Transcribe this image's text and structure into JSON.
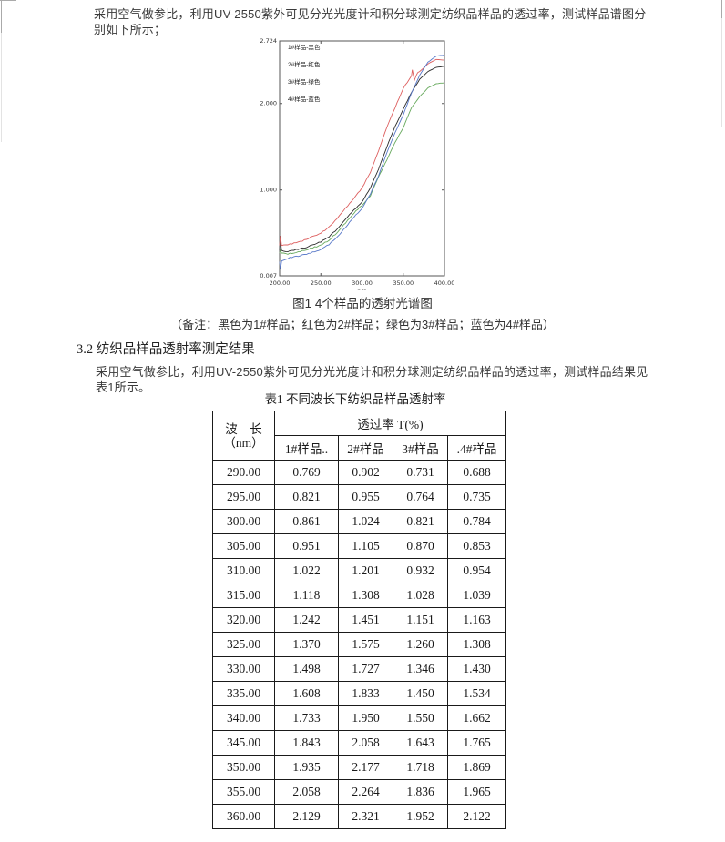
{
  "page": {
    "para1": "采用空气做参比，利用UV-2550紫外可见分光光度计和积分球测定纺织品样品的透过率，测试样品谱图分别如下所示；",
    "figure_caption": "图1  4个样品的透射光谱图",
    "figure_note": "（备注：黑色为1#样品；红色为2#样品；绿色为3#样品；蓝色为4#样品）",
    "section_heading": "3.2 纺织品样品透射率测定结果",
    "para2": "采用空气做参比，利用UV-2550紫外可见分光光度计和积分球测定纺织品样品的透过率，测试样品结果见表1所示。",
    "table_title": "表1 不同波长下纺织品样品透射率"
  },
  "chart_data": {
    "type": "line",
    "title": "图1 4个样品的透射光谱图",
    "xlabel": "nm",
    "ylabel": "",
    "xlim": [
      200,
      400
    ],
    "ylim": [
      0.007,
      2.724
    ],
    "xtick_labels": [
      "200.00",
      "250.00",
      "300.00",
      "350.00",
      "400.00"
    ],
    "ytick_labels": [
      "2.724",
      "2.000",
      "1.000",
      "0.007"
    ],
    "ytick_values": [
      2.724,
      2.0,
      1.0,
      0.007
    ],
    "legend_position": "top-left",
    "legend": [
      "1#样品-黑色",
      "2#样品-红色",
      "3#样品-绿色",
      "4#样品-蓝色"
    ],
    "x": [
      200,
      210,
      220,
      230,
      240,
      250,
      260,
      270,
      280,
      290,
      300,
      310,
      320,
      330,
      340,
      350,
      360,
      370,
      380,
      390,
      400
    ],
    "series": [
      {
        "name": "1#样品-黑色",
        "color": "#2b2b2b",
        "seed": 1,
        "start_spike": 0.42,
        "values": [
          0.3,
          0.29,
          0.31,
          0.33,
          0.36,
          0.4,
          0.46,
          0.55,
          0.66,
          0.769,
          0.861,
          1.022,
          1.242,
          1.498,
          1.733,
          1.935,
          2.129,
          2.28,
          2.37,
          2.42,
          2.43
        ]
      },
      {
        "name": "2#样品-红色",
        "color": "#dd5f5f",
        "seed": 2,
        "start_spike": 0.47,
        "notch": [
          [
            361,
            2.39
          ],
          [
            363.5,
            2.27
          ],
          [
            366,
            2.33
          ]
        ],
        "values": [
          0.36,
          0.37,
          0.39,
          0.42,
          0.46,
          0.5,
          0.57,
          0.67,
          0.79,
          0.902,
          1.024,
          1.201,
          1.451,
          1.727,
          1.95,
          2.177,
          2.321,
          2.37,
          2.46,
          2.51,
          2.5
        ]
      },
      {
        "name": "3#样品-绿色",
        "color": "#67a95d",
        "seed": 3,
        "start_spike": 0.3,
        "values": [
          0.27,
          0.26,
          0.28,
          0.3,
          0.33,
          0.36,
          0.42,
          0.51,
          0.62,
          0.731,
          0.821,
          0.932,
          1.151,
          1.346,
          1.55,
          1.718,
          1.952,
          2.08,
          2.18,
          2.23,
          2.24
        ]
      },
      {
        "name": "4#样品-蓝色",
        "color": "#5878c8",
        "seed": 4,
        "start_spike": 0.08,
        "values": [
          0.17,
          0.21,
          0.23,
          0.25,
          0.28,
          0.31,
          0.37,
          0.46,
          0.57,
          0.688,
          0.784,
          0.954,
          1.163,
          1.43,
          1.662,
          1.869,
          2.122,
          2.33,
          2.48,
          2.55,
          2.56
        ]
      }
    ]
  },
  "table": {
    "col1_header_line1": "波　长",
    "col1_header_line2": "（nm）",
    "group_header": "透过率 T(%)",
    "sub_headers": [
      "1#样品..",
      "2#样品",
      "3#样品",
      ".4#样品"
    ],
    "rows": [
      [
        "290.00",
        "0.769",
        "0.902",
        "0.731",
        "0.688"
      ],
      [
        "295.00",
        "0.821",
        "0.955",
        "0.764",
        "0.735"
      ],
      [
        "300.00",
        "0.861",
        "1.024",
        "0.821",
        "0.784"
      ],
      [
        "305.00",
        "0.951",
        "1.105",
        "0.870",
        "0.853"
      ],
      [
        "310.00",
        "1.022",
        "1.201",
        "0.932",
        "0.954"
      ],
      [
        "315.00",
        "1.118",
        "1.308",
        "1.028",
        "1.039"
      ],
      [
        "320.00",
        "1.242",
        "1.451",
        "1.151",
        "1.163"
      ],
      [
        "325.00",
        "1.370",
        "1.575",
        "1.260",
        "1.308"
      ],
      [
        "330.00",
        "1.498",
        "1.727",
        "1.346",
        "1.430"
      ],
      [
        "335.00",
        "1.608",
        "1.833",
        "1.450",
        "1.534"
      ],
      [
        "340.00",
        "1.733",
        "1.950",
        "1.550",
        "1.662"
      ],
      [
        "345.00",
        "1.843",
        "2.058",
        "1.643",
        "1.765"
      ],
      [
        "350.00",
        "1.935",
        "2.177",
        "1.718",
        "1.869"
      ],
      [
        "355.00",
        "2.058",
        "2.264",
        "1.836",
        "1.965"
      ],
      [
        "360.00",
        "2.129",
        "2.321",
        "1.952",
        "2.122"
      ]
    ]
  }
}
